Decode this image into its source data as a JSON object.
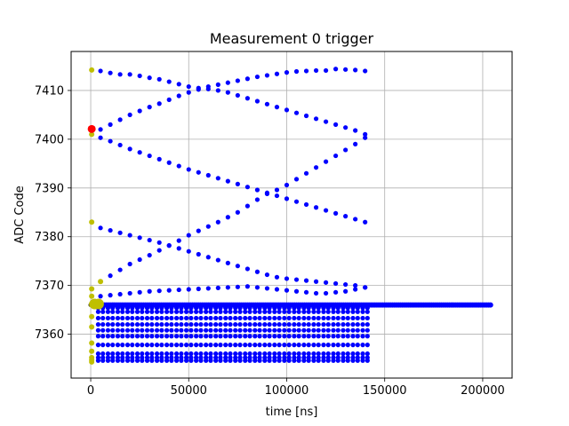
{
  "chart_data": {
    "type": "scatter",
    "title": "Measurement 0 trigger",
    "xlabel": "time [ns]",
    "ylabel": "ADC Code",
    "xlim": [
      -10000,
      215000
    ],
    "ylim": [
      7351,
      7418
    ],
    "xticks": [
      0,
      50000,
      100000,
      150000,
      200000
    ],
    "yticks": [
      7360,
      7370,
      7380,
      7390,
      7400,
      7410
    ],
    "grid": true,
    "colors": {
      "blue": "#0000ff",
      "yellow": "#bfbf00",
      "red": "#ff0000",
      "baseline": "#000000"
    },
    "descending_upper": {
      "x": [
        5000,
        10000,
        15000,
        20000,
        25000,
        30000,
        35000,
        40000,
        45000,
        50000,
        55000,
        60000,
        65000,
        70000,
        75000,
        80000,
        85000,
        90000,
        95000,
        100000,
        105000,
        110000,
        115000,
        120000,
        125000,
        130000,
        135000,
        140000
      ],
      "y": [
        7414,
        7413.6,
        7413.3,
        7413.3,
        7413.0,
        7412.6,
        7412.3,
        7411.8,
        7411.3,
        7410.8,
        7410.5,
        7410.3,
        7410.0,
        7409.6,
        7409.0,
        7408.4,
        7407.8,
        7407.2,
        7406.6,
        7406.0,
        7405.4,
        7404.8,
        7404.2,
        7403.6,
        7403.0,
        7402.4,
        7401.8,
        7401.0
      ]
    },
    "ascending_upper": {
      "x": [
        5000,
        10000,
        15000,
        20000,
        25000,
        30000,
        35000,
        40000,
        45000,
        50000,
        55000,
        60000,
        65000,
        70000,
        75000,
        80000,
        85000,
        90000,
        95000,
        100000,
        105000,
        110000,
        115000,
        120000,
        125000,
        130000,
        135000,
        140000
      ],
      "y": [
        7402.0,
        7403.0,
        7404.0,
        7405.0,
        7405.8,
        7406.6,
        7407.3,
        7408.1,
        7408.9,
        7409.6,
        7410.2,
        7410.8,
        7411.2,
        7411.6,
        7412.0,
        7412.4,
        7412.8,
        7413.1,
        7413.4,
        7413.7,
        7413.9,
        7414.0,
        7414.1,
        7414.1,
        7414.4,
        7414.3,
        7414.2,
        7414.0
      ]
    },
    "descending_middle": {
      "x": [
        5000,
        10000,
        15000,
        20000,
        25000,
        30000,
        35000,
        40000,
        45000,
        50000,
        55000,
        60000,
        65000,
        70000,
        75000,
        80000,
        85000,
        90000,
        95000,
        100000,
        105000,
        110000,
        115000,
        120000,
        125000,
        130000,
        135000,
        140000
      ],
      "y": [
        7400.3,
        7399.6,
        7398.8,
        7398.0,
        7397.3,
        7396.6,
        7395.9,
        7395.2,
        7394.5,
        7393.8,
        7393.2,
        7392.6,
        7392.0,
        7391.4,
        7390.8,
        7390.2,
        7389.6,
        7389.0,
        7388.4,
        7387.8,
        7387.2,
        7386.6,
        7386.0,
        7385.4,
        7384.8,
        7384.2,
        7383.6,
        7383.0
      ]
    },
    "ascending_middle": {
      "x": [
        5000,
        10000,
        15000,
        20000,
        25000,
        30000,
        35000,
        40000,
        45000,
        50000,
        55000,
        60000,
        65000,
        70000,
        75000,
        80000,
        85000,
        90000,
        95000,
        100000,
        105000,
        110000,
        115000,
        120000,
        125000,
        130000,
        135000,
        140000
      ],
      "y": [
        7370.8,
        7372.0,
        7373.2,
        7374.4,
        7375.3,
        7376.2,
        7377.2,
        7378.2,
        7379.2,
        7380.3,
        7381.2,
        7382.1,
        7383.0,
        7384.0,
        7385.0,
        7386.3,
        7387.6,
        7388.8,
        7389.6,
        7390.6,
        7391.8,
        7393.0,
        7394.2,
        7395.4,
        7396.6,
        7397.8,
        7399.0,
        7400.3
      ]
    },
    "descending_lower": {
      "x": [
        5000,
        10000,
        15000,
        20000,
        25000,
        30000,
        35000,
        40000,
        45000,
        50000,
        55000,
        60000,
        65000,
        70000,
        75000,
        80000,
        85000,
        90000,
        95000,
        100000,
        105000,
        110000,
        115000,
        120000,
        125000,
        130000,
        135000,
        140000
      ],
      "y": [
        7381.8,
        7381.3,
        7380.8,
        7380.3,
        7379.8,
        7379.3,
        7378.8,
        7378.2,
        7377.6,
        7377.0,
        7376.4,
        7375.8,
        7375.2,
        7374.6,
        7374.0,
        7373.4,
        7372.8,
        7372.2,
        7371.7,
        7371.4,
        7371.2,
        7371.0,
        7370.8,
        7370.6,
        7370.4,
        7370.2,
        7370.0,
        7369.6
      ]
    },
    "ascending_lower": {
      "x": [
        5000,
        10000,
        15000,
        20000,
        25000,
        30000,
        35000,
        40000,
        45000,
        50000,
        55000,
        60000,
        65000,
        70000,
        75000,
        80000,
        85000,
        90000,
        95000,
        100000,
        105000,
        110000,
        115000,
        120000,
        125000,
        130000,
        135000,
        140000
      ],
      "y": [
        7367.8,
        7368.0,
        7368.2,
        7368.4,
        7368.6,
        7368.8,
        7368.9,
        7369.0,
        7369.1,
        7369.2,
        7369.3,
        7369.4,
        7369.5,
        7369.6,
        7369.7,
        7369.8,
        7369.6,
        7369.4,
        7369.2,
        7369.0,
        7368.8,
        7368.6,
        7368.4,
        7368.4,
        7368.6,
        7368.8,
        7369.2,
        7369.6
      ]
    },
    "band_levels_y": [
      7366.0,
      7365.4,
      7364.6,
      7363.3,
      7362.0,
      7360.8,
      7359.6,
      7357.8,
      7356.0,
      7355.2,
      7354.6
    ],
    "band_x_max": 140000,
    "baseline": {
      "y": 7366.0,
      "x_start": 0,
      "x_end": 204000
    },
    "yellow_points": {
      "x": [
        500,
        500,
        500,
        500,
        500,
        500,
        500,
        500,
        500,
        500,
        500,
        500,
        500,
        500,
        5000,
        3000
      ],
      "y": [
        7414.2,
        7401.0,
        7383.0,
        7369.3,
        7367.8,
        7363.6,
        7361.5,
        7358.2,
        7356.5,
        7355.2,
        7354.7,
        7354.3,
        7366.0,
        7366.3,
        7370.8,
        7366.2
      ]
    },
    "yellow_big": {
      "x": [
        2000,
        4000
      ],
      "y": [
        7366.2,
        7366.2
      ]
    },
    "red_point": {
      "x": 500,
      "y": 7402.1
    }
  }
}
